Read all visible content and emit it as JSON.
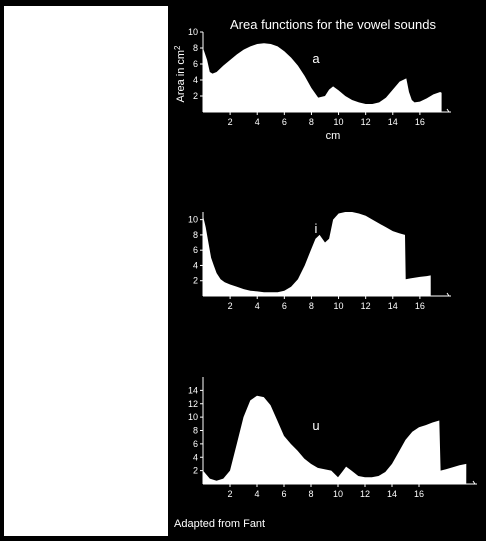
{
  "title": "Area functions for the vowel sounds",
  "credit": "Adapted from Fant",
  "colors": {
    "background": "#000000",
    "fill": "#ffffff",
    "panel": "#ffffff"
  },
  "chart_data": [
    {
      "type": "area",
      "panel_label": "a",
      "xlabel": "cm",
      "ylabel": "Area in cm",
      "ylabel_superscript": "2",
      "xticks": [
        2,
        4,
        6,
        8,
        10,
        12,
        14,
        16
      ],
      "yticks": [
        2,
        4,
        6,
        8,
        10
      ],
      "xlim": [
        0,
        18
      ],
      "ylim": [
        0,
        10
      ],
      "x": [
        0,
        0.1,
        0.3,
        0.5,
        0.7,
        1.0,
        1.5,
        2,
        2.5,
        3,
        3.5,
        4,
        4.5,
        5,
        5.5,
        6,
        6.5,
        7,
        7.5,
        8,
        8.5,
        9,
        9.3,
        9.6,
        10,
        10.5,
        11,
        11.5,
        12,
        12.5,
        13,
        13.5,
        14,
        14.5,
        15,
        15.2,
        15.4,
        15.6,
        16,
        16.5,
        17,
        17.5,
        17.6
      ],
      "y": [
        8,
        7.5,
        6.5,
        5,
        4.8,
        5,
        5.8,
        6.5,
        7.2,
        7.8,
        8.2,
        8.5,
        8.6,
        8.5,
        8.2,
        7.6,
        6.8,
        5.8,
        4.5,
        3,
        1.8,
        2,
        2.8,
        3.2,
        2.7,
        2,
        1.5,
        1.2,
        1,
        1,
        1.2,
        1.8,
        2.8,
        3.8,
        4.2,
        2.5,
        1.5,
        1.2,
        1.3,
        1.7,
        2.2,
        2.5,
        2.4
      ]
    },
    {
      "type": "area",
      "panel_label": "i",
      "xticks": [
        2,
        4,
        6,
        8,
        10,
        12,
        14,
        16
      ],
      "yticks": [
        2,
        4,
        6,
        8,
        10
      ],
      "xlim": [
        0,
        18
      ],
      "ylim": [
        0,
        11
      ],
      "x": [
        0,
        0.2,
        0.4,
        0.6,
        0.8,
        1,
        1.3,
        1.6,
        2,
        2.5,
        3,
        3.5,
        4,
        4.5,
        5,
        5.5,
        6,
        6.5,
        7,
        7.5,
        8,
        8.3,
        8.6,
        9,
        9.3,
        9.6,
        10,
        10.5,
        11,
        11.5,
        12,
        12.5,
        13,
        13.5,
        14,
        14.5,
        14.9,
        14.95,
        15.3,
        16,
        16.5,
        16.8
      ],
      "y": [
        10.5,
        9,
        7,
        5,
        4,
        3,
        2.2,
        1.8,
        1.5,
        1.2,
        0.9,
        0.7,
        0.6,
        0.5,
        0.5,
        0.5,
        0.7,
        1.2,
        2.2,
        4,
        6.2,
        7.5,
        8,
        7,
        7.5,
        10,
        10.8,
        11,
        11,
        10.8,
        10.5,
        10,
        9.5,
        9,
        8.5,
        8.2,
        8,
        2.2,
        2.3,
        2.5,
        2.6,
        2.7
      ]
    },
    {
      "type": "area",
      "panel_label": "u",
      "xticks": [
        2,
        4,
        6,
        8,
        10,
        12,
        14,
        16
      ],
      "yticks": [
        2,
        4,
        6,
        8,
        10,
        12,
        14
      ],
      "xlim": [
        0,
        20
      ],
      "ylim": [
        0,
        16
      ],
      "x": [
        0,
        0.5,
        1,
        1.5,
        2,
        2.5,
        3,
        3.5,
        4,
        4.5,
        5,
        5.5,
        6,
        6.5,
        7,
        7.5,
        8,
        8.5,
        9,
        9.5,
        10,
        10.3,
        10.6,
        11,
        11.5,
        12,
        12.5,
        13,
        13.5,
        14,
        14.5,
        15,
        15.5,
        16,
        16.5,
        17,
        17.5,
        17.6,
        18,
        18.5,
        19,
        19.5
      ],
      "y": [
        2,
        0.8,
        0.5,
        0.8,
        2,
        6,
        10,
        12.5,
        13.2,
        13,
        11.8,
        9.5,
        7.2,
        6,
        5,
        3.8,
        3,
        2.4,
        2.2,
        2,
        1,
        1.8,
        2.6,
        2,
        1.2,
        1,
        1,
        1.2,
        1.8,
        3,
        4.8,
        6.6,
        7.8,
        8.5,
        8.8,
        9.2,
        9.5,
        2,
        2.2,
        2.5,
        2.8,
        3
      ]
    }
  ]
}
